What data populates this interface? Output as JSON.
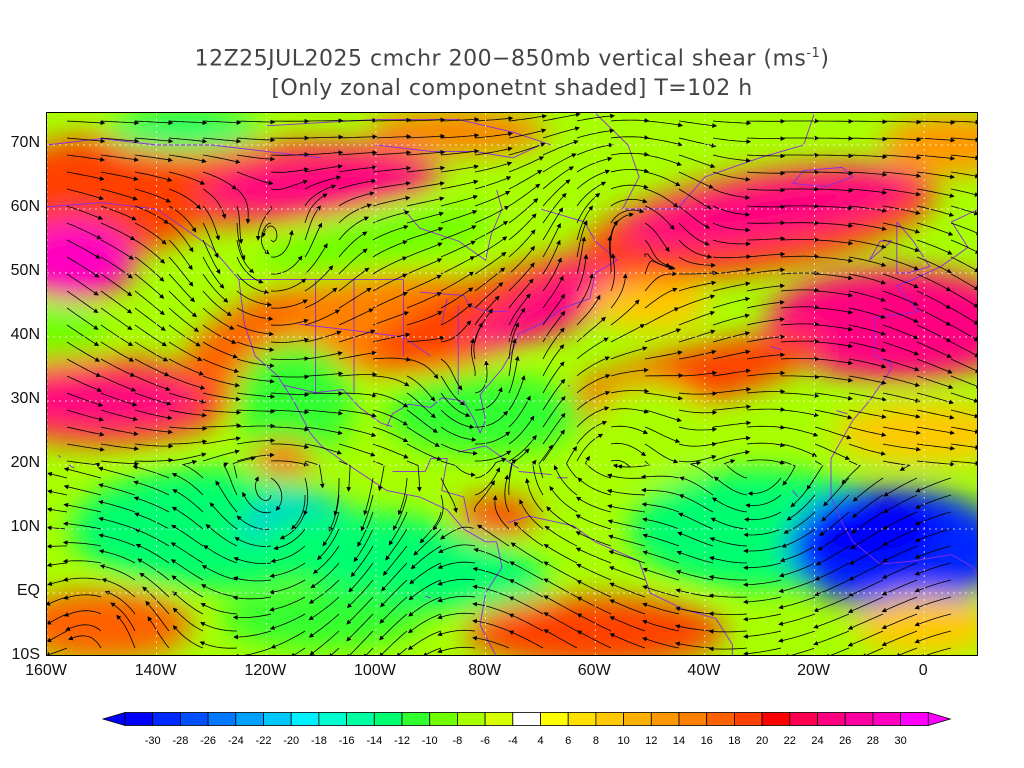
{
  "title": {
    "line1_prefix": "12Z25JUL2025 cmchr 200−850mb vertical shear (ms",
    "line1_sup": "-1",
    "line1_suffix": ")",
    "line2": "[Only zonal componetnt shaded] T=102 h"
  },
  "axes": {
    "lat_labels": [
      "70N",
      "60N",
      "50N",
      "40N",
      "30N",
      "20N",
      "10N",
      "EQ",
      "10S"
    ],
    "lat_values": [
      70,
      60,
      50,
      40,
      30,
      20,
      10,
      0,
      -10
    ],
    "lon_labels": [
      "160W",
      "140W",
      "120W",
      "100W",
      "80W",
      "60W",
      "40W",
      "20W",
      "0"
    ],
    "lon_values": [
      -160,
      -140,
      -120,
      -100,
      -80,
      -60,
      -40,
      -20,
      0
    ],
    "lon_range": [
      -160,
      10
    ],
    "lat_range": [
      -10,
      75
    ]
  },
  "colorbar": {
    "labels": [
      "-30",
      "-28",
      "-26",
      "-24",
      "-22",
      "-20",
      "-18",
      "-16",
      "-14",
      "-12",
      "-10",
      "-8",
      "-6",
      "-4",
      "4",
      "6",
      "8",
      "10",
      "12",
      "14",
      "16",
      "18",
      "20",
      "22",
      "24",
      "26",
      "28",
      "30"
    ],
    "colors": [
      "#0000ff",
      "#0028ff",
      "#0050ff",
      "#0078ff",
      "#00a0ff",
      "#00c8ff",
      "#00f0ff",
      "#00ffd0",
      "#00ffa0",
      "#00ff70",
      "#30ff30",
      "#70ff00",
      "#a8ff00",
      "#d8ff00",
      "#ffffff",
      "#ffff00",
      "#ffe000",
      "#ffc800",
      "#ffb000",
      "#ff9800",
      "#ff8000",
      "#ff6000",
      "#ff4000",
      "#ff0000",
      "#ff0050",
      "#ff0080",
      "#ff00a0",
      "#ff00c0",
      "#ff00ff"
    ],
    "arrow_low_color": "#0000ff",
    "arrow_high_color": "#ff00ff"
  }
}
